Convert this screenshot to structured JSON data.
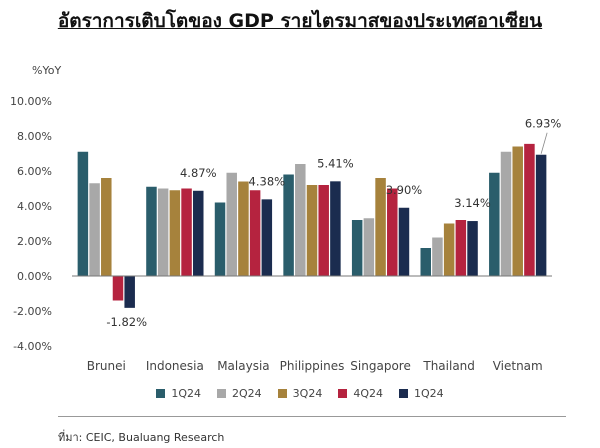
{
  "title": "อัตราการเติบโตของ GDP รายไตรมาสของประเทศอาเซียน",
  "source": "ที่มา: CEIC, Bualuang Research",
  "chart_data": {
    "type": "bar",
    "title": "อัตราการเติบโตของ GDP รายไตรมาสของประเทศอาเซียน",
    "ylabel": "%YoY",
    "xlabel": "",
    "ylim": [
      -4,
      10
    ],
    "yticks": [
      "10.00%",
      "8.00%",
      "6.00%",
      "4.00%",
      "2.00%",
      "0.00%",
      "-2.00%",
      "-4.00%"
    ],
    "ytick_values": [
      10,
      8,
      6,
      4,
      2,
      0,
      -2,
      -4
    ],
    "grid": false,
    "legend_position": "bottom",
    "categories": [
      "Brunei",
      "Indonesia",
      "Malaysia",
      "Philippines",
      "Singapore",
      "Thailand",
      "Vietnam"
    ],
    "series": [
      {
        "name": "1Q24",
        "color": "#2a5d6b",
        "values": [
          7.1,
          5.1,
          4.2,
          5.8,
          3.2,
          1.6,
          5.9
        ]
      },
      {
        "name": "2Q24",
        "color": "#a8a8a8",
        "values": [
          5.3,
          5.0,
          5.9,
          6.4,
          3.3,
          2.2,
          7.1
        ]
      },
      {
        "name": "3Q24",
        "color": "#a6823c",
        "values": [
          5.6,
          4.9,
          5.4,
          5.2,
          5.6,
          3.0,
          7.4
        ]
      },
      {
        "name": "4Q24",
        "color": "#b5233f",
        "values": [
          -1.4,
          5.0,
          4.9,
          5.2,
          5.0,
          3.2,
          7.55
        ]
      },
      {
        "name": "1Q24",
        "color": "#1b2c4f",
        "values": [
          -1.82,
          4.87,
          4.38,
          5.41,
          3.9,
          3.14,
          6.93
        ]
      }
    ],
    "data_labels": [
      {
        "category": "Brunei",
        "text": "-1.82%"
      },
      {
        "category": "Indonesia",
        "text": "4.87%"
      },
      {
        "category": "Malaysia",
        "text": "4.38%"
      },
      {
        "category": "Philippines",
        "text": "5.41%"
      },
      {
        "category": "Singapore",
        "text": "3.90%"
      },
      {
        "category": "Thailand",
        "text": "3.14%"
      },
      {
        "category": "Vietnam",
        "text": "6.93%"
      }
    ]
  }
}
